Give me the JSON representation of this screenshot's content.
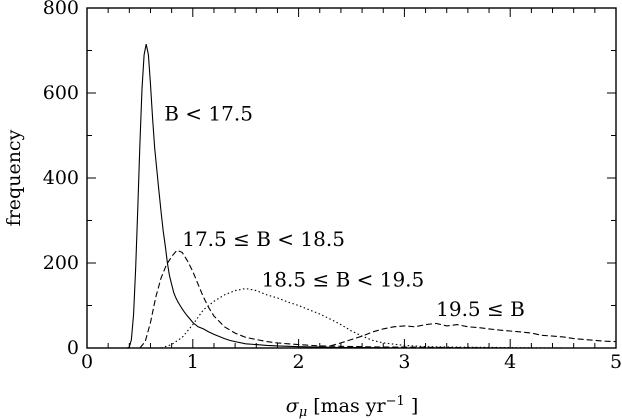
{
  "chart_data": {
    "type": "line",
    "xlabel": "σμ [mas yr−1 ]",
    "ylabel": "frequency",
    "xlim": [
      0,
      5
    ],
    "ylim": [
      0,
      800
    ],
    "x_ticks": [
      "0",
      "1",
      "2",
      "3",
      "4",
      "5"
    ],
    "y_ticks": [
      "0",
      "200",
      "400",
      "600",
      "800"
    ],
    "grid": false,
    "legend": "none",
    "series": [
      {
        "name": "B < 17.5",
        "style": "solid",
        "x": [
          0.38,
          0.4,
          0.42,
          0.44,
          0.46,
          0.48,
          0.5,
          0.52,
          0.54,
          0.56,
          0.58,
          0.6,
          0.62,
          0.64,
          0.66,
          0.68,
          0.7,
          0.72,
          0.74,
          0.76,
          0.78,
          0.8,
          0.82,
          0.84,
          0.86,
          0.88,
          0.9,
          0.92,
          0.94,
          0.96,
          0.98,
          1.0,
          1.05,
          1.1,
          1.15,
          1.2,
          1.25,
          1.3,
          1.35,
          1.4,
          1.5,
          1.6,
          1.7,
          1.8,
          1.9,
          2.0,
          2.2,
          2.4,
          2.6,
          3.0,
          3.5,
          4.0,
          5.0
        ],
        "y": [
          0,
          2,
          20,
          80,
          190,
          330,
          480,
          610,
          690,
          715,
          690,
          620,
          540,
          470,
          420,
          370,
          320,
          275,
          240,
          200,
          170,
          150,
          130,
          118,
          108,
          100,
          92,
          85,
          78,
          72,
          66,
          60,
          50,
          45,
          38,
          32,
          27,
          22,
          18,
          15,
          10,
          8,
          6,
          5,
          4,
          3,
          2,
          1,
          1,
          0,
          0,
          0,
          0
        ]
      },
      {
        "name": "17.5 ≤ B < 18.5",
        "style": "dashed",
        "x": [
          0.5,
          0.55,
          0.6,
          0.65,
          0.7,
          0.75,
          0.8,
          0.85,
          0.9,
          0.95,
          1.0,
          1.05,
          1.1,
          1.15,
          1.2,
          1.3,
          1.4,
          1.5,
          1.6,
          1.7,
          1.8,
          1.9,
          2.0,
          2.2,
          2.4,
          2.6,
          2.8,
          3.0,
          3.5,
          4.0,
          5.0
        ],
        "y": [
          0,
          15,
          60,
          120,
          165,
          195,
          215,
          230,
          225,
          205,
          180,
          150,
          120,
          95,
          75,
          50,
          35,
          25,
          20,
          15,
          12,
          10,
          8,
          5,
          4,
          3,
          2,
          2,
          1,
          0,
          0
        ]
      },
      {
        "name": "18.5 ≤ B < 19.5",
        "style": "dotted",
        "x": [
          0.7,
          0.8,
          0.9,
          1.0,
          1.1,
          1.2,
          1.3,
          1.4,
          1.5,
          1.6,
          1.7,
          1.8,
          1.9,
          2.0,
          2.1,
          2.2,
          2.3,
          2.4,
          2.5,
          2.6,
          2.7,
          2.8,
          3.0,
          3.2,
          3.5,
          4.0,
          4.5,
          5.0
        ],
        "y": [
          0,
          8,
          25,
          55,
          90,
          110,
          125,
          135,
          140,
          135,
          125,
          118,
          108,
          100,
          90,
          80,
          68,
          55,
          40,
          28,
          18,
          12,
          6,
          3,
          2,
          1,
          0,
          0
        ]
      },
      {
        "name": "19.5 ≤ B",
        "style": "dashed",
        "x": [
          2.3,
          2.4,
          2.5,
          2.6,
          2.7,
          2.8,
          2.9,
          3.0,
          3.1,
          3.2,
          3.3,
          3.4,
          3.5,
          3.6,
          3.7,
          3.8,
          3.9,
          4.0,
          4.1,
          4.2,
          4.3,
          4.4,
          4.5,
          4.6,
          4.7,
          4.8,
          4.9,
          5.0
        ],
        "y": [
          5,
          12,
          20,
          28,
          38,
          45,
          50,
          52,
          50,
          55,
          58,
          52,
          55,
          50,
          48,
          45,
          42,
          40,
          38,
          35,
          30,
          28,
          26,
          22,
          20,
          18,
          16,
          15
        ]
      }
    ],
    "annotations": [
      {
        "text": "B < 17.5",
        "x": 0.73,
        "y": 535
      },
      {
        "text": "17.5 ≤ B < 18.5",
        "x": 0.9,
        "y": 240
      },
      {
        "text": "18.5 ≤ B < 19.5",
        "x": 1.65,
        "y": 145
      },
      {
        "text": "19.5 ≤ B",
        "x": 3.3,
        "y": 75
      }
    ]
  }
}
